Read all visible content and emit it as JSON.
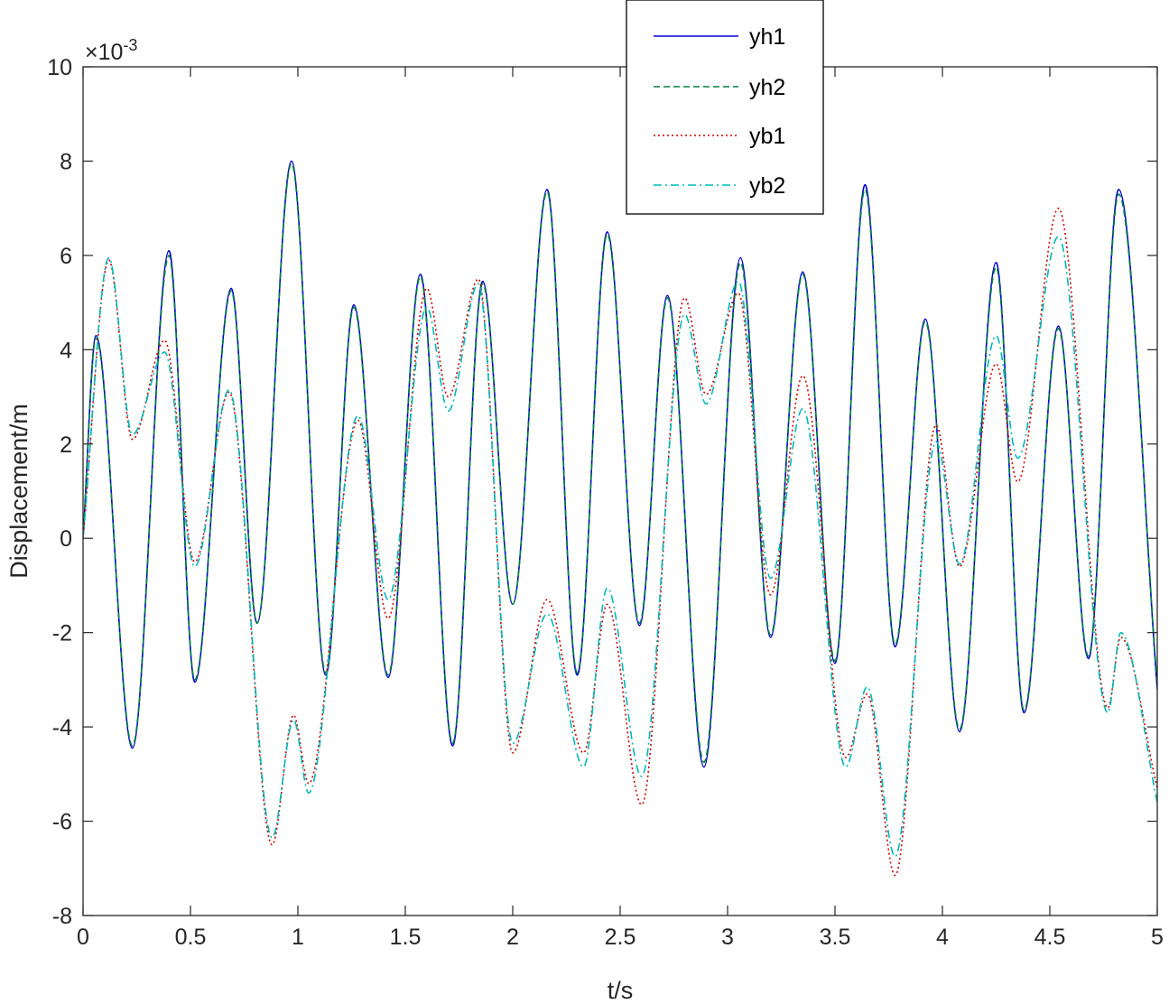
{
  "chart_data": {
    "type": "line",
    "xlabel": "t/s",
    "ylabel": "Displacement/m",
    "exponent_base": "×10",
    "exponent_power": "-3",
    "xlim": [
      0,
      5
    ],
    "ylim": [
      -8,
      10
    ],
    "xticks": [
      0,
      0.5,
      1,
      1.5,
      2,
      2.5,
      3,
      3.5,
      4,
      4.5,
      5
    ],
    "xtick_labels": [
      "0",
      "0.5",
      "1",
      "1.5",
      "2",
      "2.5",
      "3",
      "3.5",
      "4",
      "4.5",
      "5"
    ],
    "yticks": [
      -8,
      -6,
      -4,
      -2,
      0,
      2,
      4,
      6,
      8,
      10
    ],
    "ytick_labels": [
      "-8",
      "-6",
      "-4",
      "-2",
      "0",
      "2",
      "4",
      "6",
      "8",
      "10"
    ],
    "grid": false,
    "legend_position": "top-center",
    "series": [
      {
        "name": "yh1",
        "color": "#0000cc",
        "dash": "solid",
        "x": [
          0,
          0.06,
          0.23,
          0.4,
          0.52,
          0.69,
          0.81,
          0.97,
          1.13,
          1.26,
          1.42,
          1.57,
          1.72,
          1.86,
          2.0,
          2.16,
          2.3,
          2.44,
          2.59,
          2.72,
          2.89,
          3.06,
          3.2,
          3.35,
          3.5,
          3.64,
          3.78,
          3.92,
          4.08,
          4.25,
          4.38,
          4.54,
          4.68,
          4.82,
          5.0
        ],
        "y": [
          0,
          4.3,
          -4.45,
          6.1,
          -3.05,
          5.3,
          -1.8,
          8.0,
          -2.9,
          4.95,
          -2.95,
          5.6,
          -4.4,
          5.45,
          -1.4,
          7.4,
          -2.9,
          6.5,
          -1.85,
          5.15,
          -4.85,
          5.95,
          -2.1,
          5.65,
          -2.65,
          7.5,
          -2.3,
          4.65,
          -4.1,
          5.85,
          -3.7,
          4.5,
          -2.55,
          7.4,
          -3.2
        ]
      },
      {
        "name": "yh2",
        "color": "#008040",
        "dash": "dashed",
        "x": [
          0,
          0.06,
          0.23,
          0.4,
          0.52,
          0.69,
          0.81,
          0.97,
          1.13,
          1.26,
          1.42,
          1.57,
          1.72,
          1.86,
          2.0,
          2.16,
          2.3,
          2.44,
          2.59,
          2.72,
          2.89,
          3.06,
          3.2,
          3.35,
          3.5,
          3.64,
          3.78,
          3.92,
          4.08,
          4.25,
          4.38,
          4.54,
          4.68,
          4.82,
          5.0
        ],
        "y": [
          0,
          4.25,
          -4.4,
          6.0,
          -3.0,
          5.25,
          -1.8,
          7.95,
          -2.85,
          4.9,
          -2.9,
          5.55,
          -4.35,
          5.4,
          -1.4,
          7.35,
          -2.85,
          6.45,
          -1.8,
          5.1,
          -4.75,
          5.85,
          -2.05,
          5.6,
          -2.6,
          7.4,
          -2.25,
          4.6,
          -4.05,
          5.75,
          -3.65,
          4.45,
          -2.5,
          7.3,
          -3.1
        ]
      },
      {
        "name": "yb1",
        "color": "#cc0000",
        "dash": "dotted",
        "x": [
          0,
          0.12,
          0.23,
          0.38,
          0.52,
          0.68,
          0.88,
          0.98,
          1.05,
          1.28,
          1.42,
          1.6,
          1.7,
          1.84,
          2.0,
          2.16,
          2.33,
          2.44,
          2.6,
          2.8,
          2.9,
          3.05,
          3.2,
          3.35,
          3.55,
          3.65,
          3.78,
          3.97,
          4.08,
          4.25,
          4.35,
          4.54,
          4.77,
          4.83,
          5.0
        ],
        "y": [
          0,
          5.9,
          2.1,
          4.2,
          -0.5,
          3.1,
          -6.5,
          -3.75,
          -5.2,
          2.5,
          -1.7,
          5.3,
          3.0,
          5.5,
          -4.55,
          -1.3,
          -4.55,
          -1.4,
          -5.65,
          5.1,
          3.05,
          5.2,
          -1.2,
          3.45,
          -4.65,
          -3.3,
          -7.15,
          2.4,
          -0.6,
          3.7,
          1.2,
          7.0,
          -3.6,
          -2.1,
          -5.3
        ]
      },
      {
        "name": "yb2",
        "color": "#00b8b8",
        "dash": "dashdot",
        "x": [
          0,
          0.12,
          0.23,
          0.38,
          0.52,
          0.68,
          0.88,
          0.98,
          1.05,
          1.28,
          1.42,
          1.6,
          1.7,
          1.84,
          2.0,
          2.16,
          2.33,
          2.44,
          2.6,
          2.8,
          2.9,
          3.05,
          3.2,
          3.35,
          3.55,
          3.65,
          3.78,
          3.97,
          4.08,
          4.25,
          4.35,
          4.54,
          4.77,
          4.83,
          5.0
        ],
        "y": [
          0,
          5.95,
          2.2,
          3.95,
          -0.6,
          3.15,
          -6.35,
          -3.85,
          -5.4,
          2.6,
          -1.3,
          4.9,
          2.7,
          5.4,
          -4.35,
          -1.6,
          -4.85,
          -1.05,
          -5.05,
          4.75,
          2.85,
          5.45,
          -0.85,
          2.75,
          -4.85,
          -3.15,
          -6.75,
          2.05,
          -0.55,
          4.3,
          1.7,
          6.4,
          -3.7,
          -2.0,
          -5.6
        ]
      }
    ]
  }
}
